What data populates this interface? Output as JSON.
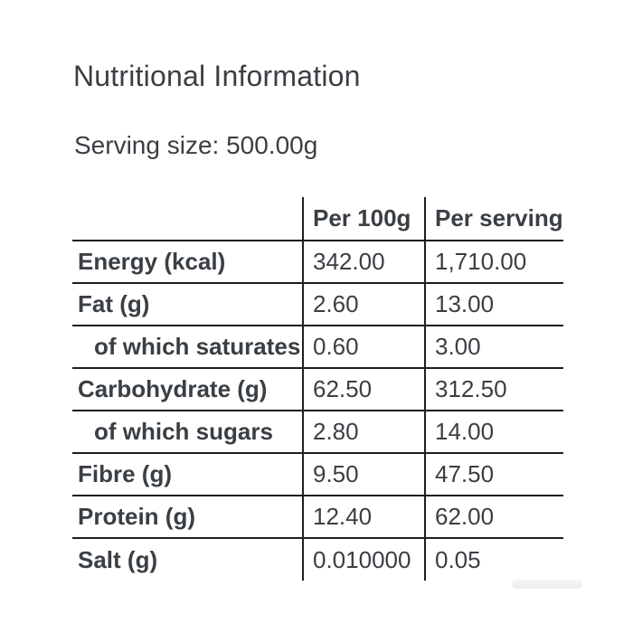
{
  "page": {
    "title": "Nutritional Information",
    "serving_size": "Serving size: 500.00g"
  },
  "nutrition_table": {
    "columns": [
      {
        "label": ""
      },
      {
        "label": "Per 100g"
      },
      {
        "label": "Per serving"
      }
    ],
    "rows": [
      {
        "label": "Energy (kcal)",
        "per_100g": "342.00",
        "per_serving": "1,710.00",
        "indent": false
      },
      {
        "label": "Fat (g)",
        "per_100g": "2.60",
        "per_serving": "13.00",
        "indent": false
      },
      {
        "label": "of which saturates",
        "per_100g": "0.60",
        "per_serving": "3.00",
        "indent": true
      },
      {
        "label": "Carbohydrate (g)",
        "per_100g": "62.50",
        "per_serving": "312.50",
        "indent": false
      },
      {
        "label": "of which sugars",
        "per_100g": "2.80",
        "per_serving": "14.00",
        "indent": true
      },
      {
        "label": "Fibre (g)",
        "per_100g": "9.50",
        "per_serving": "47.50",
        "indent": false
      },
      {
        "label": "Protein (g)",
        "per_100g": "12.40",
        "per_serving": "62.00",
        "indent": false
      },
      {
        "label": "Salt (g)",
        "per_100g": "0.010000",
        "per_serving": "0.05",
        "indent": false
      }
    ]
  },
  "colors": {
    "background": "#ffffff",
    "text": "#3a3f44",
    "border": "#1e1e1e",
    "scrollbar": "#ededee"
  }
}
